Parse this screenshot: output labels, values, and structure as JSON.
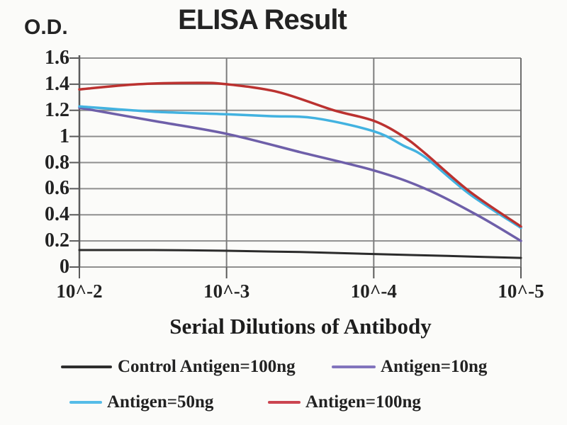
{
  "title": "ELISA Result",
  "y_axis": {
    "label": "O.D.",
    "tick_labels": [
      "1.6",
      "1.4",
      "1.2",
      "1",
      "0.8",
      "0.6",
      "0.4",
      "0.2",
      "0"
    ]
  },
  "x_axis": {
    "label": "Serial Dilutions of Antibody",
    "tick_labels": [
      "10^-2",
      "10^-3",
      "10^-4",
      "10^-5"
    ]
  },
  "legend": {
    "items": [
      {
        "label": "Control Antigen=100ng",
        "swatch_color": "#2e2e2e"
      },
      {
        "label": "Antigen=10ng",
        "swatch_color": "#8274bd"
      },
      {
        "label": "Antigen=50ng",
        "swatch_color": "#55bce8"
      },
      {
        "label": "Antigen=100ng",
        "swatch_color": "#cb4450"
      }
    ]
  },
  "chart_data": {
    "type": "line",
    "title": "ELISA Result",
    "xlabel": "Serial Dilutions of Antibody",
    "ylabel": "O.D.",
    "x_tick_labels": [
      "10^-2",
      "10^-3",
      "10^-4",
      "10^-5"
    ],
    "ylim": [
      0,
      1.6
    ],
    "y_tick_step": 0.2,
    "grid": true,
    "legend_position": "bottom",
    "colors": {
      "gridline": "#8f8f8f",
      "axis": "#5a5a5a",
      "inner_vertical_gridline": "#7d7d7d",
      "right_border": "#6e6e6e"
    },
    "series": [
      {
        "name": "Control Antigen=100ng",
        "color": "#2b2b2b",
        "values_at_x_ticks": [
          0.13,
          0.125,
          0.1,
          0.07
        ],
        "curve_points": [
          [
            0,
            0.13
          ],
          [
            0.5,
            0.13
          ],
          [
            1,
            0.125
          ],
          [
            1.5,
            0.115
          ],
          [
            2,
            0.1
          ],
          [
            2.5,
            0.085
          ],
          [
            3,
            0.07
          ]
        ]
      },
      {
        "name": "Antigen=10ng",
        "color": "#6e5fa9",
        "values_at_x_ticks": [
          1.22,
          1.02,
          0.74,
          0.2
        ],
        "curve_points": [
          [
            0,
            1.22
          ],
          [
            0.5,
            1.12
          ],
          [
            1,
            1.02
          ],
          [
            1.5,
            0.88
          ],
          [
            2,
            0.74
          ],
          [
            2.35,
            0.6
          ],
          [
            2.7,
            0.4
          ],
          [
            3,
            0.2
          ]
        ]
      },
      {
        "name": "Antigen=50ng",
        "color": "#42b2e0",
        "values_at_x_ticks": [
          1.23,
          1.17,
          1.04,
          0.3
        ],
        "curve_points": [
          [
            0,
            1.23
          ],
          [
            0.5,
            1.19
          ],
          [
            1,
            1.17
          ],
          [
            1.3,
            1.155
          ],
          [
            1.6,
            1.14
          ],
          [
            2,
            1.04
          ],
          [
            2.2,
            0.93
          ],
          [
            2.35,
            0.84
          ],
          [
            2.65,
            0.56
          ],
          [
            3,
            0.3
          ]
        ]
      },
      {
        "name": "Antigen=100ng",
        "color": "#bb3230",
        "values_at_x_ticks": [
          1.36,
          1.4,
          1.12,
          0.31
        ],
        "curve_points": [
          [
            0,
            1.36
          ],
          [
            0.4,
            1.4
          ],
          [
            0.8,
            1.41
          ],
          [
            1,
            1.4
          ],
          [
            1.35,
            1.34
          ],
          [
            1.73,
            1.2
          ],
          [
            2,
            1.12
          ],
          [
            2.2,
            1.0
          ],
          [
            2.35,
            0.87
          ],
          [
            2.65,
            0.58
          ],
          [
            3,
            0.31
          ]
        ]
      }
    ]
  }
}
